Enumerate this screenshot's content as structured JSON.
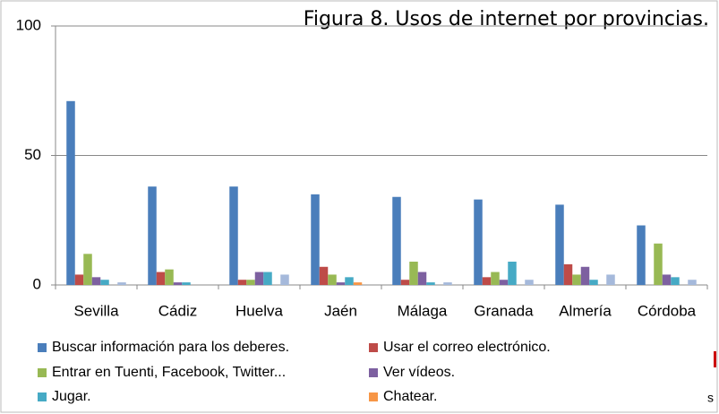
{
  "chart_data": {
    "type": "bar",
    "title": "Figura 8. Usos de internet por provincias.",
    "categories": [
      "Sevilla",
      "Cádiz",
      "Huelva",
      "Jaén",
      "Málaga",
      "Granada",
      "Almería",
      "Córdoba"
    ],
    "series": [
      {
        "name": "Buscar información para los deberes.",
        "color": "#4a7ebb",
        "values": [
          71,
          38,
          38,
          35,
          34,
          33,
          31,
          23
        ]
      },
      {
        "name": "Usar el correo electrónico.",
        "color": "#be4b48",
        "values": [
          4,
          5,
          2,
          7,
          2,
          3,
          8,
          0
        ]
      },
      {
        "name": "Entrar en Tuenti, Facebook, Twitter...",
        "color": "#98b954",
        "values": [
          12,
          6,
          2,
          4,
          9,
          5,
          4,
          16
        ]
      },
      {
        "name": "Ver vídeos.",
        "color": "#7d60a0",
        "values": [
          3,
          1,
          5,
          1,
          5,
          2,
          7,
          4
        ]
      },
      {
        "name": "Jugar.",
        "color": "#46aac5",
        "values": [
          2,
          1,
          5,
          3,
          1,
          9,
          2,
          3
        ]
      },
      {
        "name": "Chatear.",
        "color": "#f79646",
        "values": [
          0,
          0,
          0,
          1,
          0,
          0,
          0,
          0
        ]
      },
      {
        "color": "#a5b9db",
        "values": [
          1,
          0,
          4,
          0,
          1,
          2,
          4,
          2
        ]
      }
    ],
    "ylim": [
      0,
      100
    ],
    "yticks": [
      0,
      50,
      100
    ],
    "grid": true,
    "annotations": [
      "s"
    ]
  }
}
